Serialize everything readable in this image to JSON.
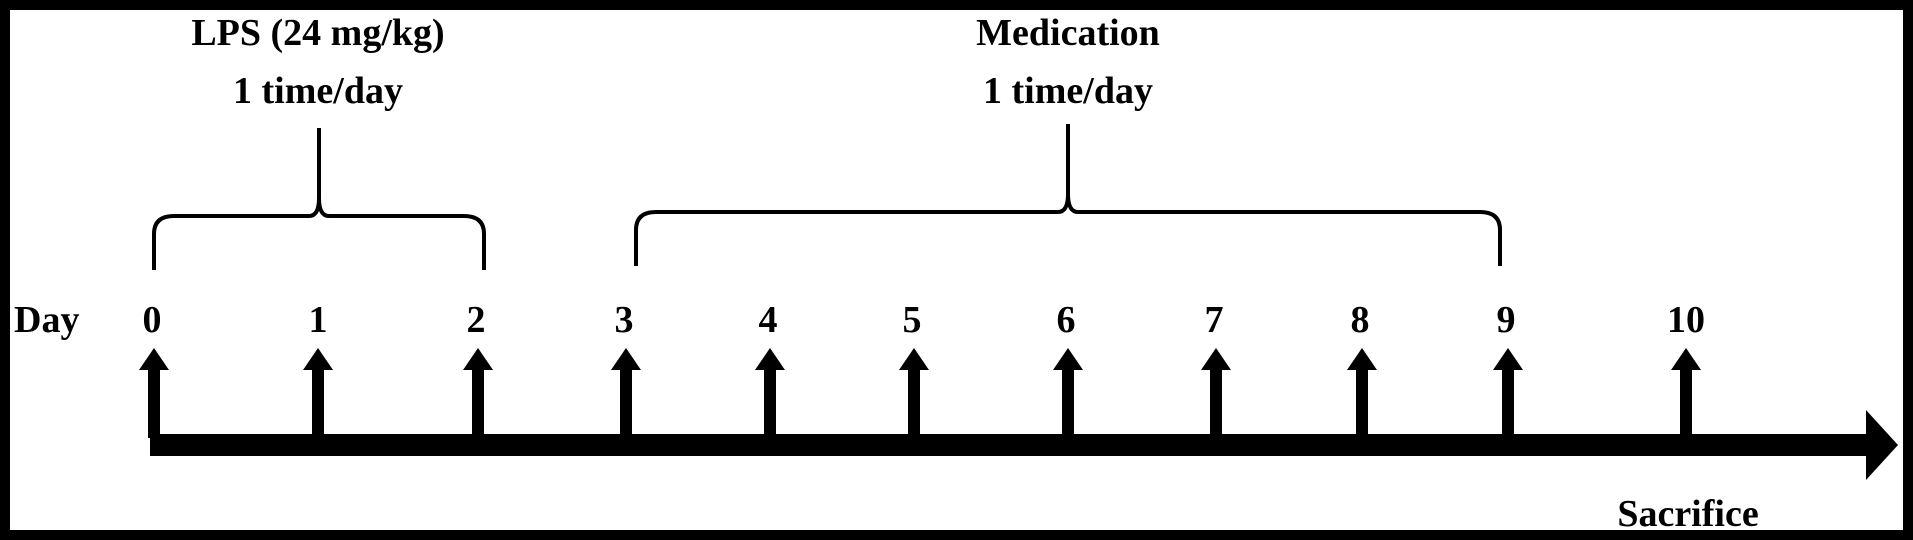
{
  "diagram": {
    "day_label": "Day",
    "days": [
      "0",
      "1",
      "2",
      "3",
      "4",
      "5",
      "6",
      "7",
      "8",
      "9",
      "10"
    ],
    "lps": {
      "line1": "LPS (24 mg/kg)",
      "line2": "1 time/day",
      "from_day": 0,
      "to_day": 2
    },
    "medication": {
      "line1": "Medication",
      "line2": "1 time/day",
      "from_day": 3,
      "to_day": 9
    },
    "sacrifice_label": "Sacrifice",
    "sacrifice_day": 10,
    "colors": {
      "background": "#ffffff",
      "border": "#000000",
      "ink": "#000000"
    }
  }
}
